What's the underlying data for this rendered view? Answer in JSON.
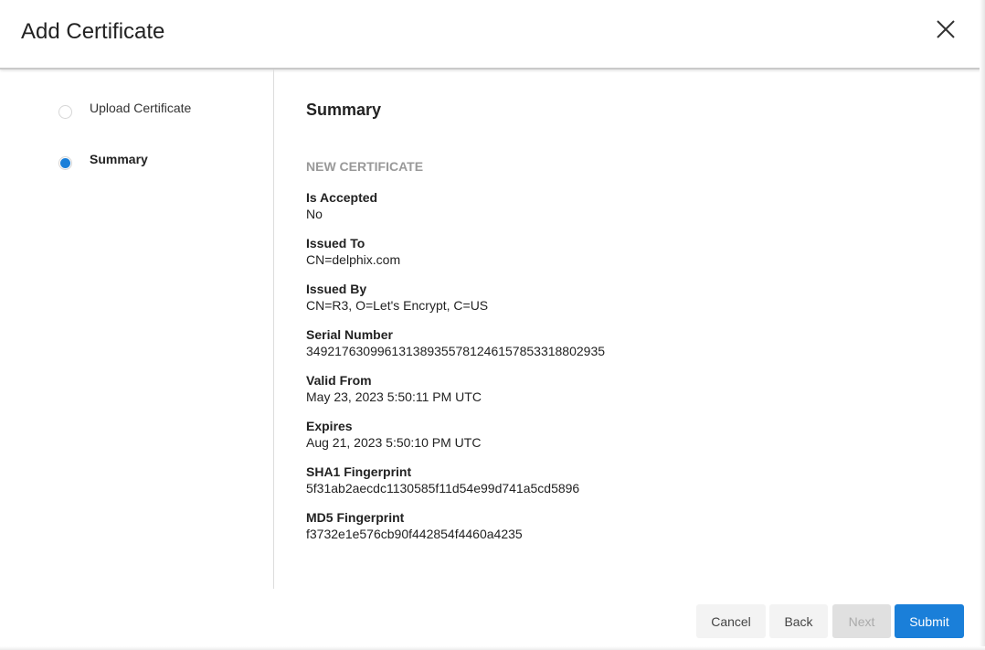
{
  "dialog": {
    "title": "Add Certificate",
    "close_icon": "close-icon"
  },
  "steps": [
    {
      "label": "Upload Certificate",
      "active": false
    },
    {
      "label": "Summary",
      "active": true
    }
  ],
  "main": {
    "title": "Summary",
    "section": "NEW CERTIFICATE",
    "fields": [
      {
        "label": "Is Accepted",
        "value": "No"
      },
      {
        "label": "Issued To",
        "value": "CN=delphix.com"
      },
      {
        "label": "Issued By",
        "value": "CN=R3, O=Let's Encrypt, C=US"
      },
      {
        "label": "Serial Number",
        "value": "349217630996131389355781246157853318802935"
      },
      {
        "label": "Valid From",
        "value": "May 23, 2023 5:50:11 PM UTC"
      },
      {
        "label": "Expires",
        "value": "Aug 21, 2023 5:50:10 PM UTC"
      },
      {
        "label": "SHA1 Fingerprint",
        "value": "5f31ab2aecdc1130585f11d54e99d741a5cd5896"
      },
      {
        "label": "MD5 Fingerprint",
        "value": "f3732e1e576cb90f442854f4460a4235"
      }
    ]
  },
  "footer": {
    "cancel": "Cancel",
    "back": "Back",
    "next": "Next",
    "submit": "Submit"
  },
  "colors": {
    "accent": "#1a7fd9"
  }
}
